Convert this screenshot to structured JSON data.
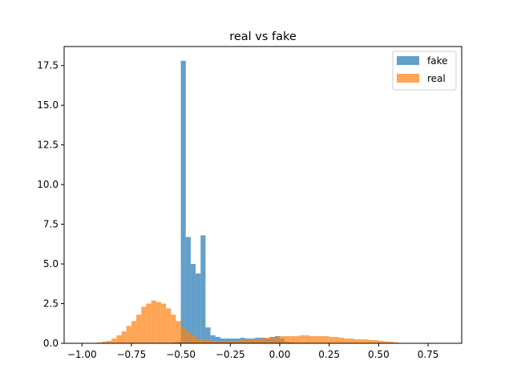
{
  "chart_data": {
    "type": "bar",
    "subtype": "overlapping-histogram",
    "title": "real vs fake",
    "xlabel": "",
    "ylabel": "",
    "xlim": [
      -1.09,
      0.92
    ],
    "ylim": [
      0,
      18.7
    ],
    "xticks": [
      -1.0,
      -0.75,
      -0.5,
      -0.25,
      0.0,
      0.25,
      0.5,
      0.75
    ],
    "xtick_labels": [
      "−1.00",
      "−0.75",
      "−0.50",
      "−0.25",
      "0.00",
      "0.25",
      "0.50",
      "0.75"
    ],
    "yticks": [
      0.0,
      2.5,
      5.0,
      7.5,
      10.0,
      12.5,
      15.0,
      17.5
    ],
    "ytick_labels": [
      "0.0",
      "2.5",
      "5.0",
      "7.5",
      "10.0",
      "12.5",
      "15.0",
      "17.5"
    ],
    "grid": false,
    "legend_position": "top-right",
    "series": [
      {
        "name": "fake",
        "color": "#1f77b4",
        "alpha": 0.7,
        "bin_edges": [
          -1.0,
          -0.975,
          -0.95,
          -0.925,
          -0.9,
          -0.875,
          -0.85,
          -0.825,
          -0.8,
          -0.775,
          -0.75,
          -0.725,
          -0.7,
          -0.675,
          -0.65,
          -0.625,
          -0.6,
          -0.575,
          -0.55,
          -0.525,
          -0.5,
          -0.475,
          -0.45,
          -0.425,
          -0.4,
          -0.375,
          -0.35,
          -0.325,
          -0.3,
          -0.275,
          -0.25,
          -0.225,
          -0.2,
          -0.175,
          -0.15,
          -0.125,
          -0.1,
          -0.075,
          -0.05,
          -0.025,
          0.0,
          0.025,
          0.05,
          0.075,
          0.1,
          0.125,
          0.15,
          0.175,
          0.2,
          0.225,
          0.25,
          0.275,
          0.3,
          0.325,
          0.35,
          0.375,
          0.4,
          0.425,
          0.45,
          0.475,
          0.5,
          0.525,
          0.55,
          0.575,
          0.6,
          0.625,
          0.65,
          0.675,
          0.7,
          0.725,
          0.75,
          0.775,
          0.8,
          0.825,
          0.85
        ],
        "values": [
          0,
          0,
          0,
          0,
          0,
          0,
          0,
          0,
          0,
          0,
          0,
          0,
          0,
          0,
          0,
          0,
          0,
          0,
          0.05,
          0.1,
          17.8,
          6.7,
          5.0,
          4.4,
          6.8,
          1.0,
          0.5,
          0.4,
          0.3,
          0.3,
          0.3,
          0.3,
          0.35,
          0.3,
          0.3,
          0.35,
          0.35,
          0.3,
          0.4,
          0.45,
          0.3,
          0.1,
          0.05,
          0.02,
          0,
          0,
          0,
          0,
          0,
          0,
          0,
          0,
          0,
          0,
          0,
          0,
          0,
          0,
          0,
          0,
          0,
          0,
          0,
          0,
          0,
          0,
          0,
          0,
          0,
          0,
          0,
          0,
          0,
          0
        ]
      },
      {
        "name": "real",
        "color": "#ff7f0e",
        "alpha": 0.7,
        "bin_edges": [
          -1.0,
          -0.975,
          -0.95,
          -0.925,
          -0.9,
          -0.875,
          -0.85,
          -0.825,
          -0.8,
          -0.775,
          -0.75,
          -0.725,
          -0.7,
          -0.675,
          -0.65,
          -0.625,
          -0.6,
          -0.575,
          -0.55,
          -0.525,
          -0.5,
          -0.475,
          -0.45,
          -0.425,
          -0.4,
          -0.375,
          -0.35,
          -0.325,
          -0.3,
          -0.275,
          -0.25,
          -0.225,
          -0.2,
          -0.175,
          -0.15,
          -0.125,
          -0.1,
          -0.075,
          -0.05,
          -0.025,
          0.0,
          0.025,
          0.05,
          0.075,
          0.1,
          0.125,
          0.15,
          0.175,
          0.2,
          0.225,
          0.25,
          0.275,
          0.3,
          0.325,
          0.35,
          0.375,
          0.4,
          0.425,
          0.45,
          0.475,
          0.5,
          0.525,
          0.55,
          0.575,
          0.6,
          0.625,
          0.65,
          0.675,
          0.7,
          0.725,
          0.75,
          0.775,
          0.8,
          0.825,
          0.85
        ],
        "values": [
          0,
          0.01,
          0.03,
          0.05,
          0.1,
          0.15,
          0.3,
          0.5,
          0.75,
          1.1,
          1.4,
          1.8,
          2.3,
          2.5,
          2.7,
          2.6,
          2.5,
          2.2,
          1.8,
          1.4,
          1.0,
          0.7,
          0.5,
          0.3,
          0.25,
          0.2,
          0.15,
          0.15,
          0.15,
          0.15,
          0.15,
          0.15,
          0.2,
          0.2,
          0.25,
          0.25,
          0.3,
          0.35,
          0.4,
          0.4,
          0.45,
          0.45,
          0.45,
          0.45,
          0.5,
          0.5,
          0.45,
          0.45,
          0.45,
          0.45,
          0.4,
          0.4,
          0.35,
          0.3,
          0.3,
          0.25,
          0.25,
          0.25,
          0.2,
          0.2,
          0.15,
          0.12,
          0.1,
          0.05,
          0.03,
          0.02,
          0.01,
          0,
          0,
          0,
          0,
          0,
          0,
          0
        ]
      }
    ]
  }
}
